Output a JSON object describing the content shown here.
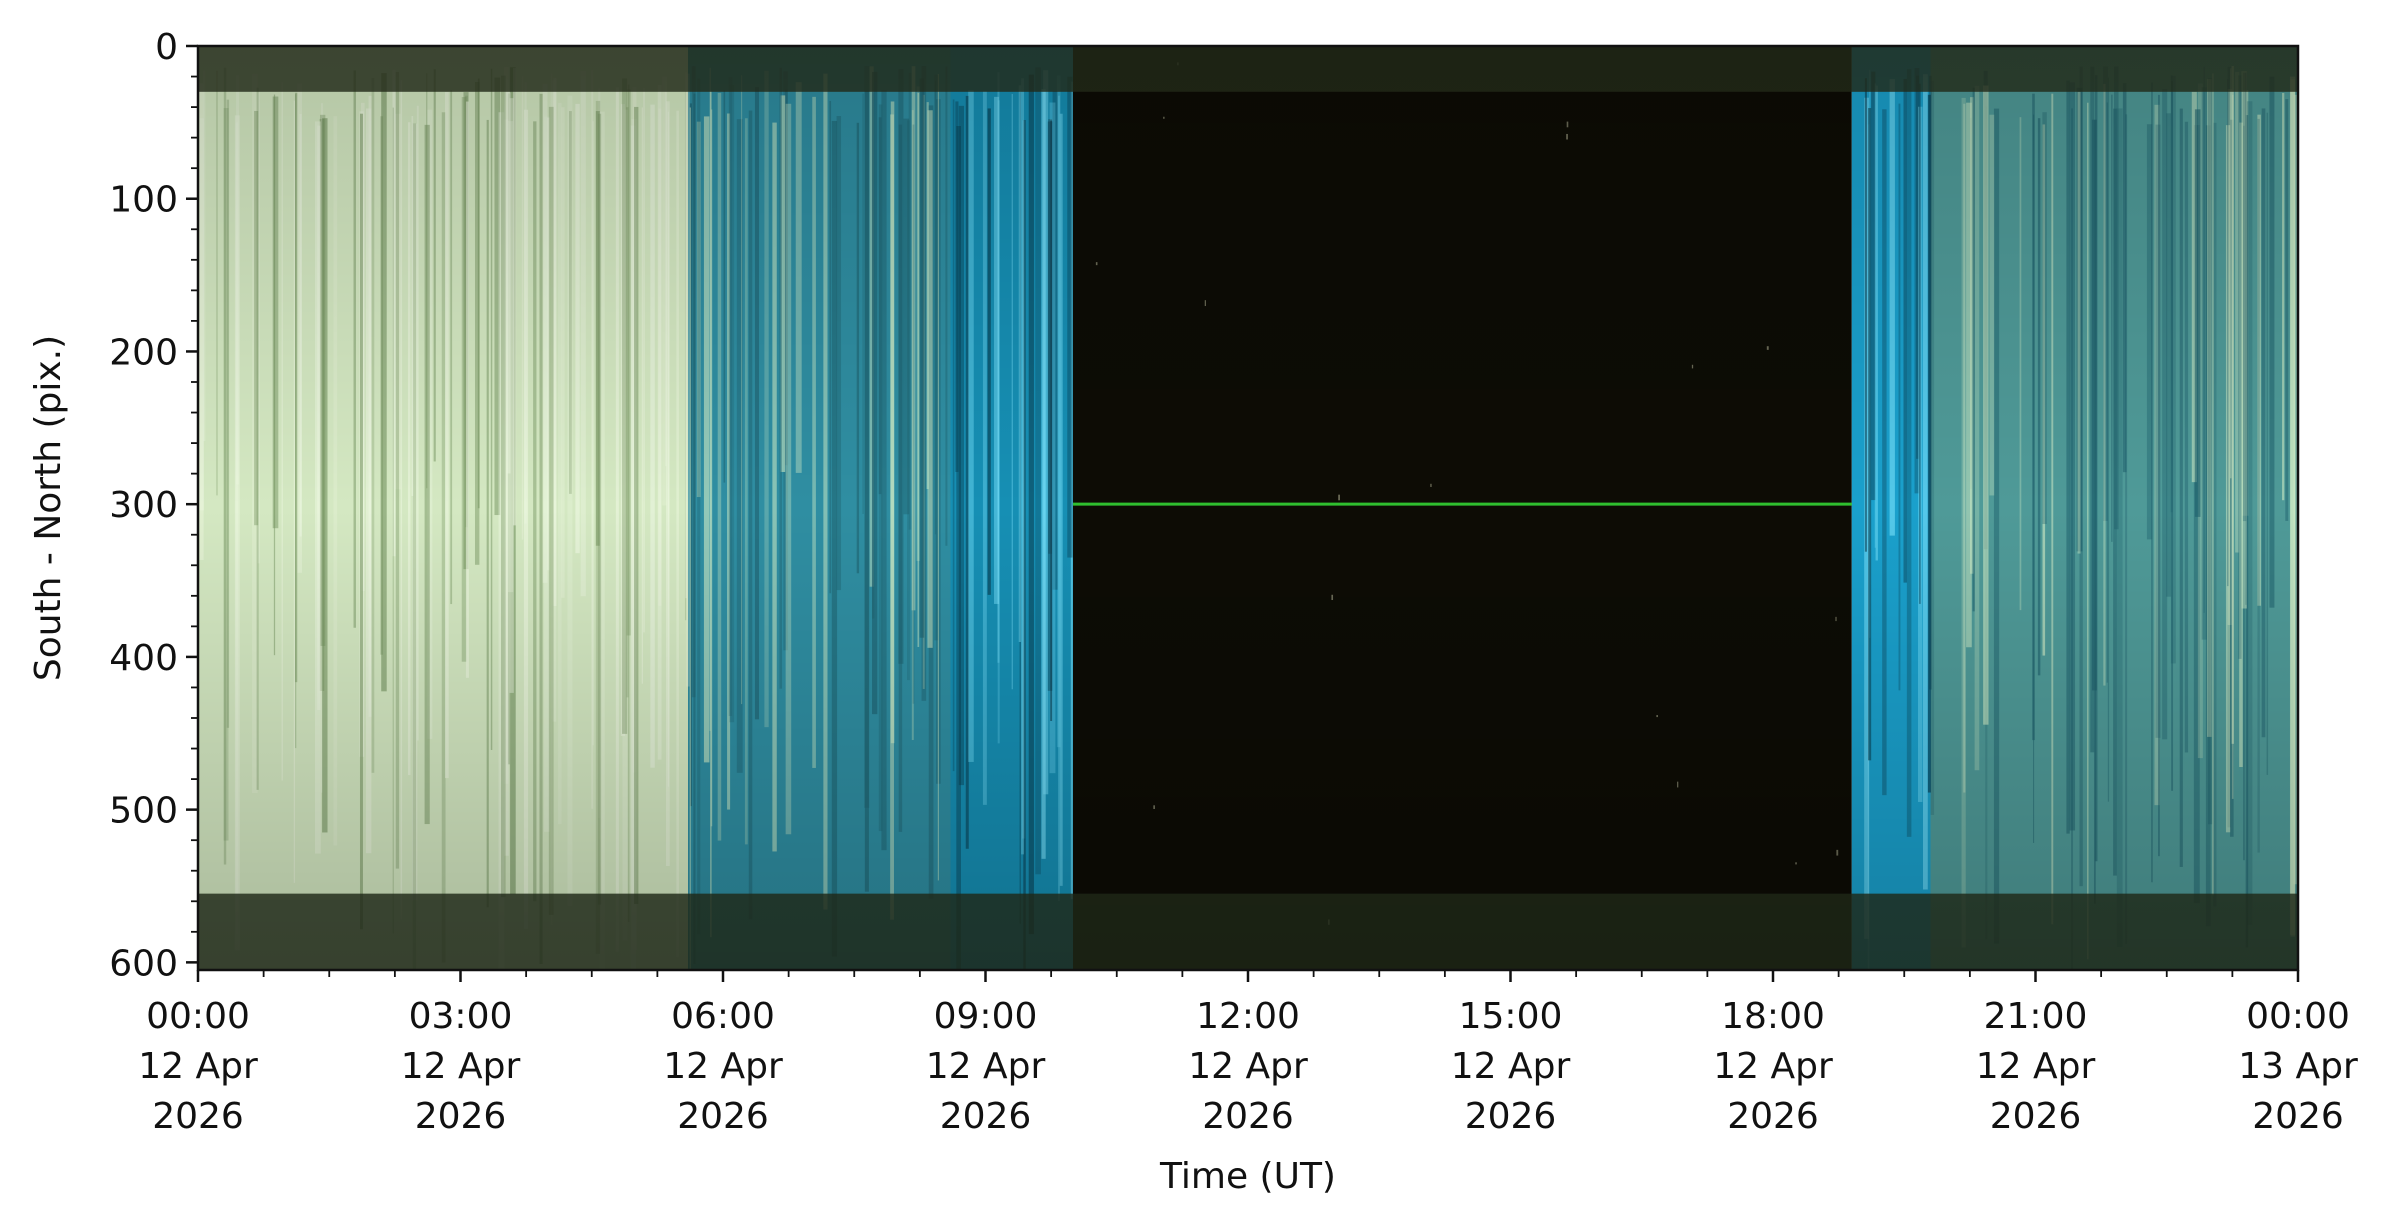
{
  "chart_data": {
    "type": "heatmap",
    "title": "",
    "xlabel": "Time (UT)",
    "ylabel": "South - North (pix.)",
    "x_range": [
      "2026-04-12T00:00",
      "2026-04-13T00:00"
    ],
    "ylim": [
      605,
      0
    ],
    "y_ticks": [
      "0",
      "100",
      "200",
      "300",
      "400",
      "500",
      "600"
    ],
    "x_ticks": [
      {
        "lines": [
          "00:00",
          "12 Apr",
          "2026"
        ]
      },
      {
        "lines": [
          "03:00",
          "12 Apr",
          "2026"
        ]
      },
      {
        "lines": [
          "06:00",
          "12 Apr",
          "2026"
        ]
      },
      {
        "lines": [
          "09:00",
          "12 Apr",
          "2026"
        ]
      },
      {
        "lines": [
          "12:00",
          "12 Apr",
          "2026"
        ]
      },
      {
        "lines": [
          "15:00",
          "12 Apr",
          "2026"
        ]
      },
      {
        "lines": [
          "18:00",
          "12 Apr",
          "2026"
        ]
      },
      {
        "lines": [
          "21:00",
          "12 Apr",
          "2026"
        ]
      },
      {
        "lines": [
          "00:00",
          "13 Apr",
          "2026"
        ]
      }
    ],
    "segments": [
      {
        "start_hour": 0.0,
        "end_hour": 5.6,
        "color": "#d4e8c2"
      },
      {
        "start_hour": 5.6,
        "end_hour": 8.6,
        "color": "#2f8ea2"
      },
      {
        "start_hour": 8.6,
        "end_hour": 10.0,
        "color": "#168fb4"
      },
      {
        "start_hour": 10.0,
        "end_hour": 18.9,
        "color": "#0d0c05"
      },
      {
        "start_hour": 18.9,
        "end_hour": 19.8,
        "color": "#1aa0cc"
      },
      {
        "start_hour": 19.8,
        "end_hour": 24.0,
        "color": "#4f9a98"
      }
    ],
    "bands": [
      {
        "y_start": 0,
        "y_end": 30,
        "color": "#27301c"
      },
      {
        "y_start": 555,
        "y_end": 605,
        "color": "#24301c"
      }
    ],
    "features": [
      {
        "name": "green streak",
        "start_hour": 10.0,
        "end_hour": 18.9,
        "y": 300,
        "color": "#2fbf2f"
      }
    ],
    "grid": false,
    "legend": "none"
  }
}
